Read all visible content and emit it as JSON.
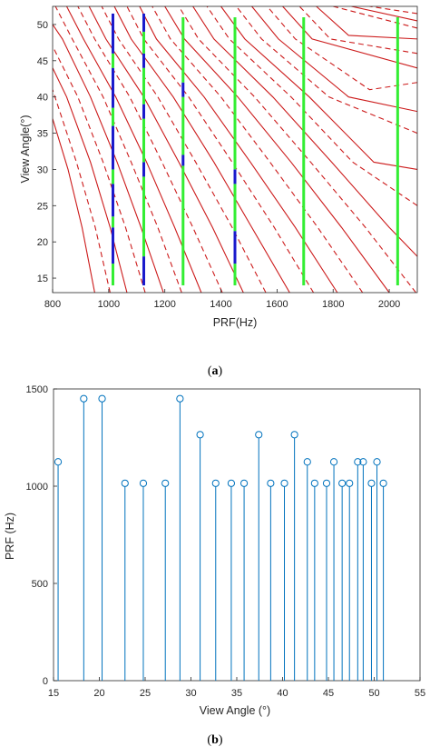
{
  "chart_data": [
    {
      "type": "line",
      "panel_label_open": "(",
      "panel_label_letter": "a",
      "panel_label_close": ")",
      "xlabel": "PRF(Hz)",
      "ylabel": "View Angle(°)",
      "xlim": [
        800,
        2100
      ],
      "ylim": [
        13,
        52.5
      ],
      "xticks": [
        800,
        1000,
        1200,
        1400,
        1600,
        1800,
        2000
      ],
      "yticks": [
        15,
        20,
        25,
        30,
        35,
        40,
        45,
        50
      ],
      "grid": false,
      "curve_color_red": "#cc1a1a",
      "selected_color_green": "#33ee33",
      "blocked_color_blue": "#1a1acc",
      "red_curves": [
        {
          "style": "solid",
          "points": [
            [
              950,
              13
            ],
            [
              905,
              22
            ],
            [
              855,
              30
            ],
            [
              800,
              37
            ]
          ]
        },
        {
          "style": "dashed",
          "points": [
            [
              1005,
              13
            ],
            [
              952,
              22
            ],
            [
              885,
              31
            ],
            [
              800,
              41
            ]
          ]
        },
        {
          "style": "solid",
          "points": [
            [
              1065,
              13
            ],
            [
              1005,
              22
            ],
            [
              935,
              31
            ],
            [
              850,
              40
            ],
            [
              800,
              44
            ]
          ]
        },
        {
          "style": "dashed",
          "points": [
            [
              1130,
              13
            ],
            [
              1060,
              22
            ],
            [
              980,
              31
            ],
            [
              890,
              40
            ],
            [
              800,
              47
            ]
          ]
        },
        {
          "style": "solid",
          "points": [
            [
              1195,
              13
            ],
            [
              1115,
              22
            ],
            [
              1030,
              31
            ],
            [
              935,
              40
            ],
            [
              835,
              48
            ],
            [
              800,
              50
            ]
          ]
        },
        {
          "style": "dashed",
          "points": [
            [
              1260,
              13
            ],
            [
              1175,
              22
            ],
            [
              1080,
              31
            ],
            [
              980,
              40
            ],
            [
              870,
              48
            ],
            [
              810,
              52.5
            ]
          ]
        },
        {
          "style": "solid",
          "points": [
            [
              1330,
              13
            ],
            [
              1235,
              22
            ],
            [
              1135,
              31
            ],
            [
              1025,
              40
            ],
            [
              910,
              48
            ],
            [
              850,
              52.5
            ]
          ]
        },
        {
          "style": "dashed",
          "points": [
            [
              1405,
              13
            ],
            [
              1300,
              22
            ],
            [
              1190,
              31
            ],
            [
              1075,
              40
            ],
            [
              950,
              48
            ],
            [
              890,
              52.5
            ]
          ]
        },
        {
          "style": "solid",
          "points": [
            [
              1480,
              13
            ],
            [
              1370,
              22
            ],
            [
              1250,
              31
            ],
            [
              1125,
              40
            ],
            [
              990,
              48
            ],
            [
              930,
              52.5
            ]
          ]
        },
        {
          "style": "dashed",
          "points": [
            [
              1560,
              13
            ],
            [
              1440,
              22
            ],
            [
              1310,
              31
            ],
            [
              1175,
              40
            ],
            [
              1035,
              48
            ],
            [
              975,
              52.5
            ]
          ]
        },
        {
          "style": "solid",
          "points": [
            [
              1645,
              13
            ],
            [
              1510,
              22
            ],
            [
              1375,
              31
            ],
            [
              1230,
              40
            ],
            [
              1080,
              48
            ],
            [
              1020,
              52.5
            ]
          ]
        },
        {
          "style": "dashed",
          "points": [
            [
              1730,
              13
            ],
            [
              1590,
              22
            ],
            [
              1440,
              31
            ],
            [
              1285,
              40
            ],
            [
              1125,
              48
            ],
            [
              1065,
              52.5
            ]
          ]
        },
        {
          "style": "solid",
          "points": [
            [
              1815,
              13
            ],
            [
              1665,
              22
            ],
            [
              1505,
              31
            ],
            [
              1340,
              40
            ],
            [
              1170,
              48
            ],
            [
              1110,
              52.5
            ]
          ]
        },
        {
          "style": "dashed",
          "points": [
            [
              1905,
              13
            ],
            [
              1745,
              22
            ],
            [
              1575,
              31
            ],
            [
              1400,
              40
            ],
            [
              1220,
              48
            ],
            [
              1155,
              52.5
            ]
          ]
        },
        {
          "style": "solid",
          "points": [
            [
              2000,
              13
            ],
            [
              1830,
              22
            ],
            [
              1650,
              31
            ],
            [
              1460,
              40
            ],
            [
              1270,
              48
            ],
            [
              1200,
              52.5
            ]
          ]
        },
        {
          "style": "dashed",
          "points": [
            [
              2095,
              13
            ],
            [
              1915,
              22
            ],
            [
              1720,
              31
            ],
            [
              1520,
              40
            ],
            [
              1320,
              48
            ],
            [
              1250,
              52.5
            ]
          ]
        },
        {
          "style": "solid",
          "points": [
            [
              2100,
              18
            ],
            [
              2000,
              22
            ],
            [
              1795,
              31
            ],
            [
              1585,
              40
            ],
            [
              1375,
              48
            ],
            [
              1300,
              52.5
            ]
          ]
        },
        {
          "style": "dashed",
          "points": [
            [
              2100,
              25
            ],
            [
              1870,
              31
            ],
            [
              1650,
              40
            ],
            [
              1430,
              48
            ],
            [
              1350,
              52.5
            ]
          ]
        },
        {
          "style": "solid",
          "points": [
            [
              2100,
              30
            ],
            [
              1945,
              31
            ],
            [
              1715,
              40
            ],
            [
              1485,
              48
            ],
            [
              1400,
              52.5
            ]
          ]
        },
        {
          "style": "dashed",
          "points": [
            [
              2100,
              35
            ],
            [
              1785,
              40
            ],
            [
              1545,
              48
            ],
            [
              1455,
              52.5
            ]
          ]
        },
        {
          "style": "solid",
          "points": [
            [
              2100,
              38
            ],
            [
              1855,
              40
            ],
            [
              1605,
              48
            ],
            [
              1510,
              52.5
            ]
          ]
        },
        {
          "style": "dashed",
          "points": [
            [
              2100,
              42
            ],
            [
              1930,
              41
            ],
            [
              1665,
              48
            ],
            [
              1565,
              52.5
            ]
          ]
        },
        {
          "style": "solid",
          "points": [
            [
              2100,
              44
            ],
            [
              1725,
              48
            ],
            [
              1620,
              52.5
            ]
          ]
        },
        {
          "style": "dashed",
          "points": [
            [
              2100,
              46
            ],
            [
              1790,
              48
            ],
            [
              1680,
              52.5
            ]
          ]
        },
        {
          "style": "solid",
          "points": [
            [
              2100,
              48
            ],
            [
              1855,
              48.5
            ],
            [
              1740,
              52.5
            ]
          ]
        },
        {
          "style": "dashed",
          "points": [
            [
              2100,
              49.5
            ],
            [
              1800,
              52.5
            ]
          ]
        },
        {
          "style": "solid",
          "points": [
            [
              2100,
              50.5
            ],
            [
              1865,
              52.5
            ]
          ]
        },
        {
          "style": "dashed",
          "points": [
            [
              2100,
              51.5
            ],
            [
              1930,
              52.5
            ]
          ]
        }
      ],
      "prf_lines": [
        {
          "prf": 1015,
          "y_from": 14,
          "y_to": 51.5,
          "segments": [
            [
              14,
              17,
              "green"
            ],
            [
              17,
              22,
              "blue"
            ],
            [
              22,
              23.5,
              "green"
            ],
            [
              23.5,
              28,
              "blue"
            ],
            [
              28,
              30,
              "green"
            ],
            [
              30,
              36,
              "blue"
            ],
            [
              36,
              38.5,
              "green"
            ],
            [
              38.5,
              44,
              "blue"
            ],
            [
              44,
              46,
              "green"
            ],
            [
              46,
              51.5,
              "blue"
            ]
          ]
        },
        {
          "prf": 1125,
          "y_from": 14,
          "y_to": 51.5,
          "segments": [
            [
              14,
              18,
              "blue"
            ],
            [
              18,
              29,
              "green"
            ],
            [
              29,
              31,
              "blue"
            ],
            [
              31,
              37,
              "green"
            ],
            [
              37,
              39,
              "blue"
            ],
            [
              39,
              44,
              "green"
            ],
            [
              44,
              46,
              "blue"
            ],
            [
              46,
              49,
              "green"
            ],
            [
              49,
              51.5,
              "blue"
            ]
          ]
        },
        {
          "prf": 1265,
          "y_from": 14,
          "y_to": 51,
          "segments": [
            [
              14,
              30.5,
              "green"
            ],
            [
              30.5,
              32,
              "blue"
            ],
            [
              32,
              40,
              "green"
            ],
            [
              40,
              42,
              "blue"
            ],
            [
              42,
              51,
              "green"
            ]
          ]
        },
        {
          "prf": 1450,
          "y_from": 14,
          "y_to": 51,
          "segments": [
            [
              14,
              17,
              "green"
            ],
            [
              17,
              21.5,
              "blue"
            ],
            [
              21.5,
              28,
              "green"
            ],
            [
              28,
              30,
              "blue"
            ],
            [
              30,
              51,
              "green"
            ]
          ]
        },
        {
          "prf": 1695,
          "y_from": 14,
          "y_to": 51,
          "segments": [
            [
              14,
              51,
              "green"
            ]
          ]
        },
        {
          "prf": 2030,
          "y_from": 14,
          "y_to": 51,
          "segments": [
            [
              14,
              51,
              "green"
            ]
          ]
        }
      ]
    },
    {
      "type": "stem",
      "panel_label_open": "(",
      "panel_label_letter": "b",
      "panel_label_close": ")",
      "xlabel": "View Angle (°)",
      "ylabel": "PRF (Hz)",
      "xlim": [
        15,
        55
      ],
      "ylim": [
        0,
        1500
      ],
      "xticks": [
        15,
        20,
        25,
        30,
        35,
        40,
        45,
        50,
        55
      ],
      "yticks": [
        0,
        500,
        1000,
        1500
      ],
      "grid": false,
      "stem_color": "#0072bd",
      "x": [
        15.5,
        18.3,
        20.3,
        22.8,
        24.8,
        27.2,
        28.8,
        31.0,
        32.7,
        34.4,
        35.8,
        37.4,
        38.7,
        40.2,
        41.3,
        42.7,
        43.5,
        44.8,
        45.6,
        46.5,
        47.3,
        48.2,
        48.8,
        49.7,
        50.3,
        51.0
      ],
      "y": [
        1125,
        1450,
        1450,
        1015,
        1015,
        1015,
        1450,
        1265,
        1015,
        1015,
        1015,
        1265,
        1015,
        1015,
        1265,
        1125,
        1015,
        1015,
        1125,
        1015,
        1015,
        1125,
        1125,
        1015,
        1125,
        1015
      ]
    }
  ]
}
